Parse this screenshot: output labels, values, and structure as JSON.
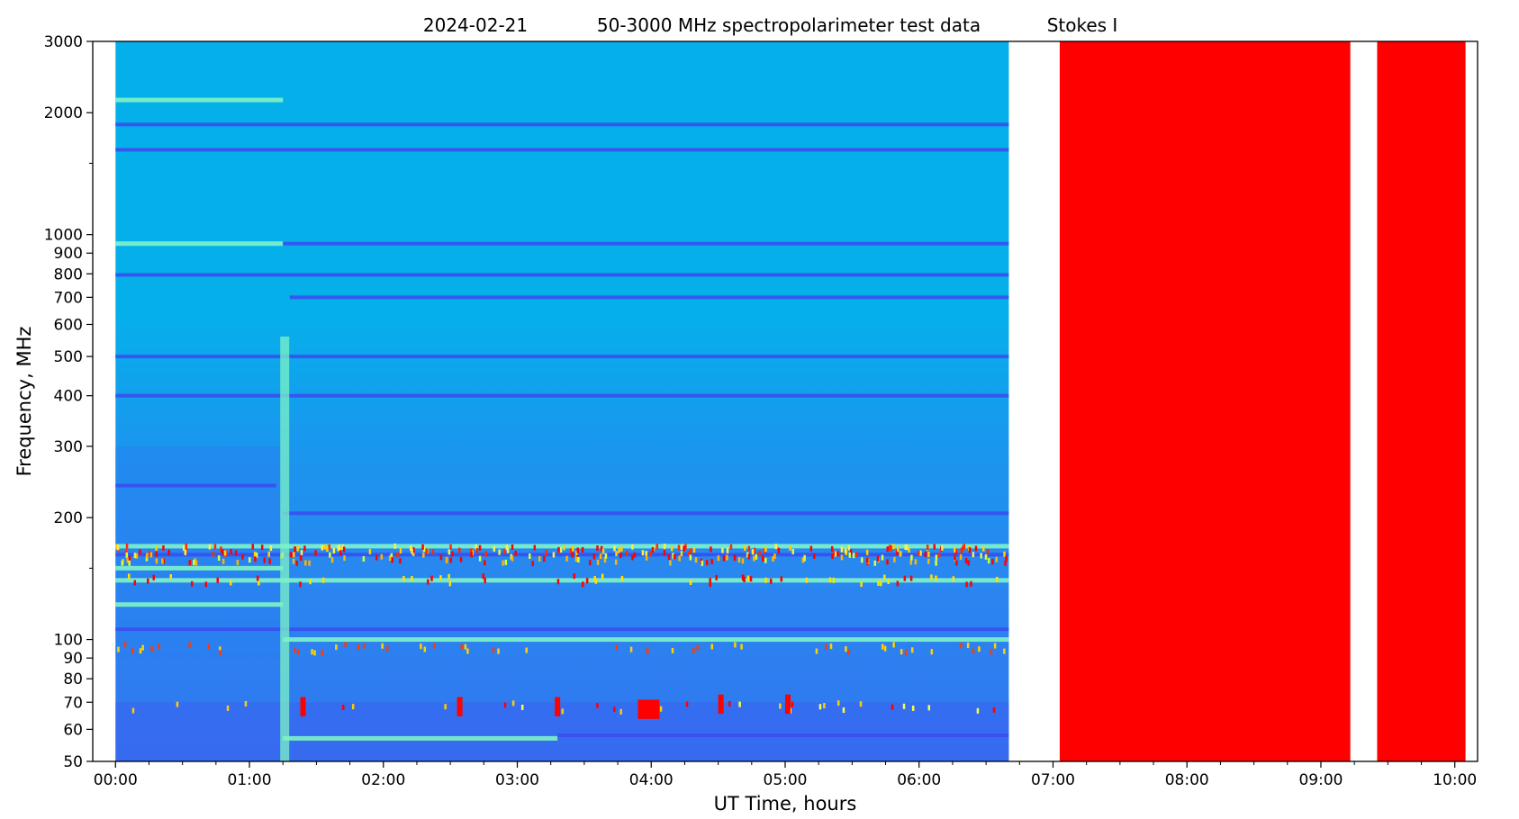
{
  "chart_data": {
    "type": "heatmap",
    "title_parts": [
      "2024-02-21",
      "50-3000 MHz spectropolarimeter test data",
      "Stokes I"
    ],
    "xlabel": "UT Time, hours",
    "ylabel": "Frequency, MHz",
    "x_unit": "hours",
    "xlim": [
      -0.17,
      10.17
    ],
    "ylim": [
      50,
      3000
    ],
    "y_scale": "log",
    "x_ticks": [
      {
        "value": 0,
        "label": "00:00"
      },
      {
        "value": 1,
        "label": "01:00"
      },
      {
        "value": 2,
        "label": "02:00"
      },
      {
        "value": 3,
        "label": "03:00"
      },
      {
        "value": 4,
        "label": "04:00"
      },
      {
        "value": 5,
        "label": "05:00"
      },
      {
        "value": 6,
        "label": "06:00"
      },
      {
        "value": 7,
        "label": "07:00"
      },
      {
        "value": 8,
        "label": "08:00"
      },
      {
        "value": 9,
        "label": "09:00"
      },
      {
        "value": 10,
        "label": "10:00"
      }
    ],
    "y_ticks": [
      {
        "value": 50,
        "label": "50"
      },
      {
        "value": 60,
        "label": "60"
      },
      {
        "value": 70,
        "label": "70"
      },
      {
        "value": 80,
        "label": "80"
      },
      {
        "value": 90,
        "label": "90"
      },
      {
        "value": 100,
        "label": "100"
      },
      {
        "value": 200,
        "label": "200"
      },
      {
        "value": 300,
        "label": "300"
      },
      {
        "value": 400,
        "label": "400"
      },
      {
        "value": 500,
        "label": "500"
      },
      {
        "value": 600,
        "label": "600"
      },
      {
        "value": 700,
        "label": "700"
      },
      {
        "value": 800,
        "label": "800"
      },
      {
        "value": 900,
        "label": "900"
      },
      {
        "value": 1000,
        "label": "1000"
      },
      {
        "value": 2000,
        "label": "2000"
      },
      {
        "value": 3000,
        "label": "3000"
      }
    ],
    "y_minor_ticks": [
      150,
      1500
    ],
    "colors": {
      "base_high": "#05b0ea",
      "base_low": "#2f86f0",
      "lowest_band": "#3a63f0",
      "saturated": "#ff0000",
      "bright_line": "#7ef3c6",
      "dark_line": "#3a4ff0"
    },
    "observed_segment": {
      "start": 0.0,
      "end": 6.67
    },
    "saturated_segments": [
      {
        "start": 7.05,
        "end": 9.22
      },
      {
        "start": 9.42,
        "end": 10.08
      }
    ],
    "rfi_lines": [
      {
        "freq": 2150,
        "start": 0.0,
        "end": 1.25,
        "kind": "bright"
      },
      {
        "freq": 1870,
        "start": 0.0,
        "end": 6.67,
        "kind": "dark"
      },
      {
        "freq": 1620,
        "start": 0.0,
        "end": 6.67,
        "kind": "dark"
      },
      {
        "freq": 950,
        "start": 0.0,
        "end": 1.25,
        "kind": "bright"
      },
      {
        "freq": 950,
        "start": 1.25,
        "end": 6.67,
        "kind": "dark"
      },
      {
        "freq": 795,
        "start": 0.0,
        "end": 6.67,
        "kind": "dark"
      },
      {
        "freq": 700,
        "start": 1.3,
        "end": 6.67,
        "kind": "dark"
      },
      {
        "freq": 500,
        "start": 0.0,
        "end": 6.67,
        "kind": "dark"
      },
      {
        "freq": 400,
        "start": 0.0,
        "end": 6.67,
        "kind": "dark"
      },
      {
        "freq": 240,
        "start": 0.0,
        "end": 1.2,
        "kind": "dark"
      },
      {
        "freq": 205,
        "start": 1.25,
        "end": 6.67,
        "kind": "dark"
      },
      {
        "freq": 170,
        "start": 0.0,
        "end": 6.67,
        "kind": "bright"
      },
      {
        "freq": 162,
        "start": 0.0,
        "end": 6.67,
        "kind": "dark"
      },
      {
        "freq": 150,
        "start": 0.0,
        "end": 1.25,
        "kind": "bright"
      },
      {
        "freq": 140,
        "start": 0.0,
        "end": 6.67,
        "kind": "bright"
      },
      {
        "freq": 122,
        "start": 0.0,
        "end": 1.25,
        "kind": "bright"
      },
      {
        "freq": 106,
        "start": 0.0,
        "end": 6.67,
        "kind": "dark"
      },
      {
        "freq": 100,
        "start": 1.25,
        "end": 6.67,
        "kind": "bright"
      },
      {
        "freq": 57,
        "start": 1.25,
        "end": 3.3,
        "kind": "bright"
      },
      {
        "freq": 58,
        "start": 3.3,
        "end": 6.67,
        "kind": "dark"
      }
    ],
    "burst": {
      "time": 1.25,
      "freq_min": 50,
      "freq_max": 560
    }
  }
}
